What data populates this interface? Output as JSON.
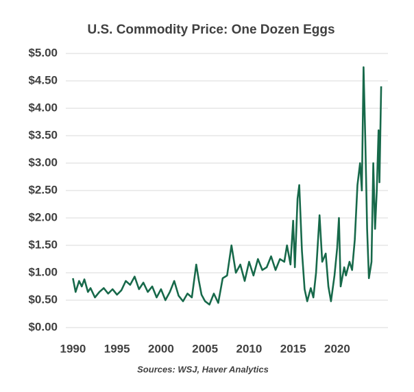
{
  "chart_data": {
    "type": "line",
    "title": "U.S. Commodity Price: One Dozen Eggs",
    "source": "Sources: WSJ, Haver Analytics",
    "x": [
      1990,
      1990.3,
      1990.7,
      1991,
      1991.3,
      1991.7,
      1992,
      1992.5,
      1993,
      1993.5,
      1994,
      1994.5,
      1995,
      1995.5,
      1996,
      1996.5,
      1997,
      1997.5,
      1998,
      1998.5,
      1999,
      1999.5,
      2000,
      2000.5,
      2001,
      2001.5,
      2002,
      2002.5,
      2003,
      2003.5,
      2004,
      2004.3,
      2004.6,
      2005,
      2005.5,
      2006,
      2006.5,
      2007,
      2007.5,
      2008,
      2008.5,
      2009,
      2009.5,
      2010,
      2010.5,
      2011,
      2011.5,
      2012,
      2012.5,
      2013,
      2013.5,
      2014,
      2014.3,
      2014.7,
      2015,
      2015.2,
      2015.5,
      2015.7,
      2016,
      2016.3,
      2016.6,
      2017,
      2017.3,
      2017.6,
      2018,
      2018.3,
      2018.7,
      2019,
      2019.3,
      2019.7,
      2020,
      2020.2,
      2020.4,
      2020.8,
      2021,
      2021.4,
      2021.7,
      2022,
      2022.3,
      2022.6,
      2022.8,
      2023,
      2023.2,
      2023.4,
      2023.6,
      2023.9,
      2024.1,
      2024.3,
      2024.5,
      2024.7,
      2024.8,
      2025
    ],
    "series": [
      {
        "color": "#17694a",
        "values": [
          0.9,
          0.65,
          0.85,
          0.75,
          0.88,
          0.65,
          0.72,
          0.55,
          0.65,
          0.72,
          0.62,
          0.7,
          0.6,
          0.68,
          0.85,
          0.78,
          0.93,
          0.7,
          0.82,
          0.65,
          0.75,
          0.55,
          0.7,
          0.5,
          0.65,
          0.85,
          0.58,
          0.48,
          0.62,
          0.55,
          1.15,
          0.85,
          0.6,
          0.48,
          0.42,
          0.62,
          0.45,
          0.9,
          0.95,
          1.5,
          1.0,
          1.15,
          0.85,
          1.2,
          0.95,
          1.25,
          1.05,
          1.1,
          1.3,
          1.05,
          1.25,
          1.2,
          1.5,
          1.15,
          1.95,
          1.1,
          2.35,
          2.6,
          1.4,
          0.7,
          0.48,
          0.72,
          0.55,
          1.0,
          2.05,
          1.2,
          1.35,
          0.75,
          0.48,
          0.95,
          1.45,
          2.0,
          0.75,
          1.1,
          0.95,
          1.2,
          1.05,
          1.6,
          2.6,
          3.0,
          2.5,
          4.75,
          3.4,
          1.8,
          0.9,
          1.2,
          3.0,
          1.8,
          2.5,
          3.6,
          2.65,
          4.4
        ]
      }
    ],
    "xlim": [
      1989.5,
      2025.3
    ],
    "xticks": [
      1990,
      1995,
      2000,
      2005,
      2010,
      2015,
      2020
    ],
    "ylim": [
      0,
      5.2
    ],
    "yticks": [
      {
        "value": 0,
        "label": "$0.00"
      },
      {
        "value": 0.5,
        "label": "$0.50"
      },
      {
        "value": 1,
        "label": "$1.00"
      },
      {
        "value": 1.5,
        "label": "$1.50"
      },
      {
        "value": 2,
        "label": "$2.00"
      },
      {
        "value": 2.5,
        "label": "$2.50"
      },
      {
        "value": 3,
        "label": "$3.00"
      },
      {
        "value": 3.5,
        "label": "$3.50"
      },
      {
        "value": 4,
        "label": "$4.00"
      },
      {
        "value": 4.5,
        "label": "$4.50"
      },
      {
        "value": 5,
        "label": "$5.00"
      }
    ],
    "grid": true
  }
}
